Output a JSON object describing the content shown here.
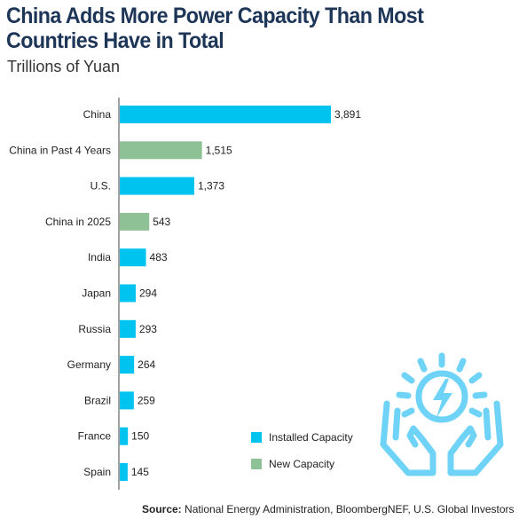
{
  "title": "China Adds More Power Capacity Than Most Countries Have in Total",
  "subtitle": "Trillions of Yuan",
  "source_label": "Source:",
  "source_text": "National Energy Administration, BloombergNEF, U.S. Global Investors",
  "colors": {
    "installed": "#00c3f0",
    "new": "#8fc196",
    "icon": "#6fd3f7"
  },
  "icon_name": "hands-lightning-icon",
  "chart_data": {
    "type": "bar",
    "orientation": "horizontal",
    "title": "China Adds More Power Capacity Than Most Countries Have in Total",
    "subtitle": "Trillions of Yuan",
    "xlim": [
      0,
      3891
    ],
    "grid": false,
    "legend_position": "bottom-right",
    "series": [
      {
        "name": "Installed Capacity",
        "color": "#00c3f0"
      },
      {
        "name": "New Capacity",
        "color": "#8fc196"
      }
    ],
    "bars": [
      {
        "category": "China",
        "value": 3891,
        "label": "3,891",
        "series": "Installed Capacity"
      },
      {
        "category": "China in Past 4 Years",
        "value": 1515,
        "label": "1,515",
        "series": "New Capacity"
      },
      {
        "category": "U.S.",
        "value": 1373,
        "label": "1,373",
        "series": "Installed Capacity"
      },
      {
        "category": "China in 2025",
        "value": 543,
        "label": "543",
        "series": "New Capacity"
      },
      {
        "category": "India",
        "value": 483,
        "label": "483",
        "series": "Installed Capacity"
      },
      {
        "category": "Japan",
        "value": 294,
        "label": "294",
        "series": "Installed Capacity"
      },
      {
        "category": "Russia",
        "value": 293,
        "label": "293",
        "series": "Installed Capacity"
      },
      {
        "category": "Germany",
        "value": 264,
        "label": "264",
        "series": "Installed Capacity"
      },
      {
        "category": "Brazil",
        "value": 259,
        "label": "259",
        "series": "Installed Capacity"
      },
      {
        "category": "France",
        "value": 150,
        "label": "150",
        "series": "Installed Capacity"
      },
      {
        "category": "Spain",
        "value": 145,
        "label": "145",
        "series": "Installed Capacity"
      }
    ]
  }
}
